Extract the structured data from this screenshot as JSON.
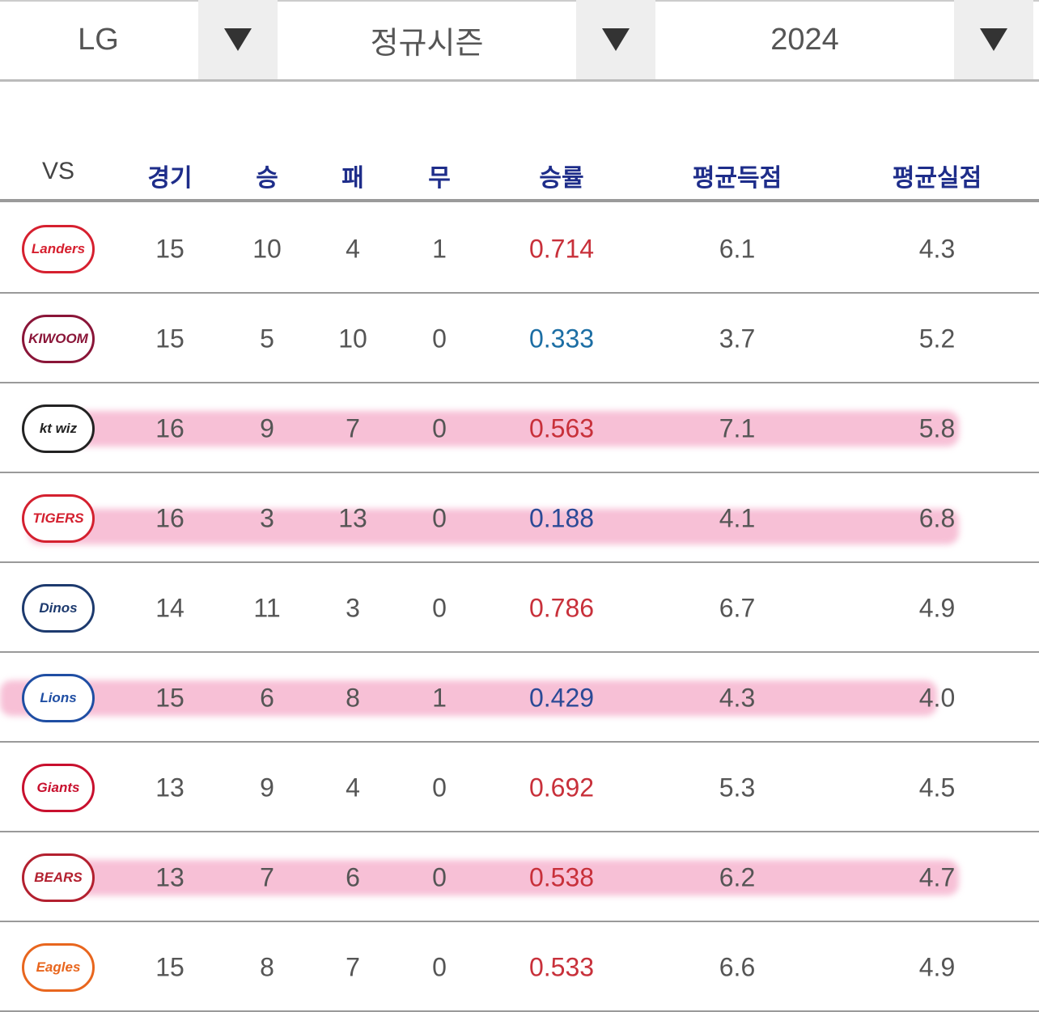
{
  "selectors": [
    "LG",
    "정규시즌",
    "2024"
  ],
  "table": {
    "headers": [
      "VS",
      "경기",
      "승",
      "패",
      "무",
      "승률",
      "평균득점",
      "평균실점"
    ],
    "rows": [
      {
        "logo": "Landers",
        "logo_color": "#d6202f",
        "cells": [
          "15",
          "10",
          "4",
          "1",
          "0.714",
          "6.1",
          "4.3"
        ],
        "rate_color": "#c8303a",
        "highlight": false
      },
      {
        "logo": "KIWOOM",
        "logo_color": "#8a1538",
        "cells": [
          "15",
          "5",
          "10",
          "0",
          "0.333",
          "3.7",
          "5.2"
        ],
        "rate_color": "#1c6ea4",
        "highlight": false
      },
      {
        "logo": "kt wiz",
        "logo_color": "#222222",
        "cells": [
          "16",
          "9",
          "7",
          "0",
          "0.563",
          "7.1",
          "5.8"
        ],
        "rate_color": "#c8303a",
        "highlight": true
      },
      {
        "logo": "TIGERS",
        "logo_color": "#d4202f",
        "cells": [
          "16",
          "3",
          "13",
          "0",
          "0.188",
          "4.1",
          "6.8"
        ],
        "rate_color": "#2b4a96",
        "highlight": true
      },
      {
        "logo": "Dinos",
        "logo_color": "#1d3a6e",
        "cells": [
          "14",
          "11",
          "3",
          "0",
          "0.786",
          "6.7",
          "4.9"
        ],
        "rate_color": "#c8303a",
        "highlight": false
      },
      {
        "logo": "Lions",
        "logo_color": "#1f4ea3",
        "cells": [
          "15",
          "6",
          "8",
          "1",
          "0.429",
          "4.3",
          "4.0"
        ],
        "rate_color": "#2b4a96",
        "highlight": true
      },
      {
        "logo": "Giants",
        "logo_color": "#c8102e",
        "cells": [
          "13",
          "9",
          "4",
          "0",
          "0.692",
          "5.3",
          "4.5"
        ],
        "rate_color": "#c8303a",
        "highlight": false
      },
      {
        "logo": "BEARS",
        "logo_color": "#b3202f",
        "cells": [
          "13",
          "7",
          "6",
          "0",
          "0.538",
          "6.2",
          "4.7"
        ],
        "rate_color": "#c8303a",
        "highlight": true
      },
      {
        "logo": "Eagles",
        "logo_color": "#e8661e",
        "cells": [
          "15",
          "8",
          "7",
          "0",
          "0.533",
          "6.6",
          "4.9"
        ],
        "rate_color": "#c8303a",
        "highlight": false
      }
    ]
  }
}
